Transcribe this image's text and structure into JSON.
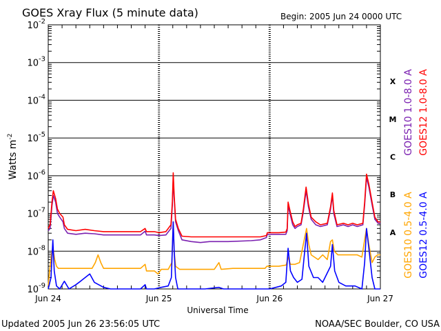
{
  "header": {
    "title": "GOES Xray Flux (5 minute data)",
    "begin": "Begin:  2005 Jun 24 0000 UTC"
  },
  "footer": {
    "updated": "Updated 2005 Jun 26 23:56:05 UTC",
    "credit": "NOAA/SEC Boulder, CO USA"
  },
  "chart_data": {
    "type": "line",
    "title": "GOES Xray Flux (5 minute data)",
    "xlabel": "Universal Time",
    "ylabel": "Watts m",
    "ylabel_sup": "-2",
    "y_scale": "log",
    "ylim": [
      1e-09,
      0.01
    ],
    "xlim_hours": [
      0,
      72
    ],
    "grid": true,
    "x_ticks": [
      {
        "h": 0,
        "label": "Jun 24"
      },
      {
        "h": 24,
        "label": "Jun 25"
      },
      {
        "h": 48,
        "label": "Jun 26"
      },
      {
        "h": 72,
        "label": "Jun 27"
      }
    ],
    "y_ticks": [
      {
        "exp": -9,
        "base": "10",
        "sup": "-9"
      },
      {
        "exp": -8,
        "base": "10",
        "sup": "-8"
      },
      {
        "exp": -7,
        "base": "10",
        "sup": "-7"
      },
      {
        "exp": -6,
        "base": "10",
        "sup": "-6"
      },
      {
        "exp": -5,
        "base": "10",
        "sup": "-5"
      },
      {
        "exp": -4,
        "base": "10",
        "sup": "-4"
      },
      {
        "exp": -3,
        "base": "10",
        "sup": "-3"
      },
      {
        "exp": -2,
        "base": "10",
        "sup": "-2"
      }
    ],
    "flare_classes": [
      {
        "label": "A",
        "exp": -7.5
      },
      {
        "label": "B",
        "exp": -6.5
      },
      {
        "label": "C",
        "exp": -5.5
      },
      {
        "label": "M",
        "exp": -4.5
      },
      {
        "label": "X",
        "exp": -3.5
      }
    ],
    "legend_top": [
      {
        "text": "GOES12 1.0-8.0 A",
        "color": "#ff0000"
      },
      {
        "text": "GOES10 1.0-8.0 A",
        "color": "#7a1fb0"
      }
    ],
    "legend_bottom": [
      {
        "text": "GOES12 0.5-4.0 A",
        "color": "#0000ff"
      },
      {
        "text": "GOES10 0.5-4.0 A",
        "color": "#ffa500"
      }
    ],
    "series": [
      {
        "name": "GOES12 1.0-8.0 A",
        "color": "#ff0000",
        "points": [
          [
            0,
            4e-08
          ],
          [
            0.4,
            5e-08
          ],
          [
            0.8,
            2e-07
          ],
          [
            1.1,
            4e-07
          ],
          [
            1.6,
            2.5e-07
          ],
          [
            2,
            1.3e-07
          ],
          [
            2.5,
            1e-07
          ],
          [
            3.2,
            8e-08
          ],
          [
            3.5,
            5e-08
          ],
          [
            4.2,
            3.8e-08
          ],
          [
            6,
            3.5e-08
          ],
          [
            8,
            3.8e-08
          ],
          [
            10,
            3.5e-08
          ],
          [
            12,
            3.3e-08
          ],
          [
            16,
            3.3e-08
          ],
          [
            20,
            3.3e-08
          ],
          [
            21,
            4e-08
          ],
          [
            21.3,
            3.3e-08
          ],
          [
            23,
            3.3e-08
          ],
          [
            24,
            3.1e-08
          ],
          [
            25.5,
            3.3e-08
          ],
          [
            26.6,
            5e-08
          ],
          [
            26.9,
            2e-07
          ],
          [
            27.1,
            1.2e-06
          ],
          [
            27.3,
            3e-07
          ],
          [
            27.6,
            7e-08
          ],
          [
            28.2,
            4e-08
          ],
          [
            29,
            2.5e-08
          ],
          [
            31,
            2.4e-08
          ],
          [
            33,
            2.4e-08
          ],
          [
            35,
            2.4e-08
          ],
          [
            39,
            2.4e-08
          ],
          [
            44,
            2.4e-08
          ],
          [
            46,
            2.4e-08
          ],
          [
            47.3,
            2.6e-08
          ],
          [
            47.5,
            3.1e-08
          ],
          [
            48,
            3.1e-08
          ],
          [
            50,
            3.1e-08
          ],
          [
            51.5,
            3.2e-08
          ],
          [
            51.8,
            4e-08
          ],
          [
            52,
            2e-07
          ],
          [
            52.4,
            1.2e-07
          ],
          [
            53,
            6e-08
          ],
          [
            53.5,
            4.5e-08
          ],
          [
            54,
            5e-08
          ],
          [
            54.8,
            5.5e-08
          ],
          [
            55.3,
            1.3e-07
          ],
          [
            55.9,
            5e-07
          ],
          [
            56.4,
            1.8e-07
          ],
          [
            57,
            8e-08
          ],
          [
            58,
            6e-08
          ],
          [
            59,
            5e-08
          ],
          [
            60.5,
            5.5e-08
          ],
          [
            61.2,
            1.5e-07
          ],
          [
            61.6,
            3.5e-07
          ],
          [
            61.9,
            1.2e-07
          ],
          [
            62.6,
            5e-08
          ],
          [
            64,
            5.5e-08
          ],
          [
            65,
            5e-08
          ],
          [
            66,
            5.5e-08
          ],
          [
            67,
            5e-08
          ],
          [
            68.2,
            5.5e-08
          ],
          [
            68.6,
            2e-07
          ],
          [
            69,
            1.1e-06
          ],
          [
            69.5,
            6e-07
          ],
          [
            70.2,
            2e-07
          ],
          [
            70.8,
            8e-08
          ],
          [
            71.5,
            6e-08
          ],
          [
            72,
            6e-08
          ]
        ]
      },
      {
        "name": "GOES10 1.0-8.0 A",
        "color": "#7a1fb0",
        "points": [
          [
            0,
            3.5e-08
          ],
          [
            0.4,
            4e-08
          ],
          [
            0.8,
            1.6e-07
          ],
          [
            1.1,
            3e-07
          ],
          [
            1.6,
            2e-07
          ],
          [
            2,
            1e-07
          ],
          [
            2.5,
            8e-08
          ],
          [
            3.2,
            6e-08
          ],
          [
            3.5,
            4e-08
          ],
          [
            4.2,
            3e-08
          ],
          [
            6,
            2.8e-08
          ],
          [
            8,
            3e-08
          ],
          [
            10,
            2.9e-08
          ],
          [
            12,
            2.7e-08
          ],
          [
            16,
            2.7e-08
          ],
          [
            20,
            2.7e-08
          ],
          [
            21,
            3.4e-08
          ],
          [
            21.3,
            2.7e-08
          ],
          [
            23,
            2.7e-08
          ],
          [
            24,
            2.6e-08
          ],
          [
            25.5,
            2.7e-08
          ],
          [
            26.6,
            4e-08
          ],
          [
            26.9,
            1.6e-07
          ],
          [
            27.1,
            8e-07
          ],
          [
            27.3,
            2.5e-07
          ],
          [
            27.6,
            6e-08
          ],
          [
            28.2,
            3.5e-08
          ],
          [
            29,
            2e-08
          ],
          [
            31,
            1.8e-08
          ],
          [
            33,
            1.7e-08
          ],
          [
            35,
            1.8e-08
          ],
          [
            39,
            1.8e-08
          ],
          [
            44,
            1.9e-08
          ],
          [
            46,
            2e-08
          ],
          [
            47.3,
            2.3e-08
          ],
          [
            47.5,
            2.8e-08
          ],
          [
            48,
            2.8e-08
          ],
          [
            50,
            2.8e-08
          ],
          [
            51.5,
            2.8e-08
          ],
          [
            51.8,
            3.5e-08
          ],
          [
            52,
            1.6e-07
          ],
          [
            52.4,
            1e-07
          ],
          [
            53,
            5e-08
          ],
          [
            53.5,
            4e-08
          ],
          [
            54,
            4.5e-08
          ],
          [
            54.8,
            5e-08
          ],
          [
            55.3,
            1.1e-07
          ],
          [
            55.9,
            4e-07
          ],
          [
            56.4,
            1.5e-07
          ],
          [
            57,
            7e-08
          ],
          [
            58,
            5e-08
          ],
          [
            59,
            4.5e-08
          ],
          [
            60.5,
            5e-08
          ],
          [
            61.2,
            1.3e-07
          ],
          [
            61.6,
            3e-07
          ],
          [
            61.9,
            1e-07
          ],
          [
            62.6,
            4.5e-08
          ],
          [
            64,
            5e-08
          ],
          [
            65,
            4.5e-08
          ],
          [
            66,
            5e-08
          ],
          [
            67,
            4.5e-08
          ],
          [
            68.2,
            5e-08
          ],
          [
            68.6,
            1.7e-07
          ],
          [
            69,
            9e-07
          ],
          [
            69.5,
            5e-07
          ],
          [
            70.2,
            1.7e-07
          ],
          [
            70.8,
            7e-08
          ],
          [
            71.5,
            5.5e-08
          ],
          [
            72,
            5.5e-08
          ]
        ]
      },
      {
        "name": "GOES10 0.5-4.0 A",
        "color": "#ffa500",
        "points": [
          [
            0,
            1.2e-09
          ],
          [
            0.3,
            3e-09
          ],
          [
            0.7,
            8e-09
          ],
          [
            1,
            1.3e-08
          ],
          [
            1.4,
            6e-09
          ],
          [
            1.8,
            4e-09
          ],
          [
            2.2,
            3.5e-09
          ],
          [
            3,
            3.5e-09
          ],
          [
            4,
            3.5e-09
          ],
          [
            5,
            3.5e-09
          ],
          [
            7,
            3.5e-09
          ],
          [
            9.5,
            3.5e-09
          ],
          [
            10.2,
            5e-09
          ],
          [
            10.8,
            8e-09
          ],
          [
            11.4,
            5e-09
          ],
          [
            12,
            3.5e-09
          ],
          [
            14,
            3.5e-09
          ],
          [
            17,
            3.5e-09
          ],
          [
            20,
            3.5e-09
          ],
          [
            21,
            4.5e-09
          ],
          [
            21.3,
            3e-09
          ],
          [
            23,
            3e-09
          ],
          [
            23.8,
            2.5e-09
          ],
          [
            24.5,
            3.3e-09
          ],
          [
            26,
            3.3e-09
          ],
          [
            26.8,
            5e-09
          ],
          [
            27.1,
            6e-08
          ],
          [
            27.3,
            1e-08
          ],
          [
            27.6,
            4e-09
          ],
          [
            28.5,
            3.3e-09
          ],
          [
            32,
            3.3e-09
          ],
          [
            36,
            3.3e-09
          ],
          [
            37,
            5e-09
          ],
          [
            37.5,
            3.3e-09
          ],
          [
            40,
            3.5e-09
          ],
          [
            42,
            3.5e-09
          ],
          [
            45,
            3.5e-09
          ],
          [
            47,
            3.5e-09
          ],
          [
            47.4,
            4e-09
          ],
          [
            48,
            4e-09
          ],
          [
            50,
            4e-09
          ],
          [
            51.6,
            4.3e-09
          ],
          [
            52,
            7e-09
          ],
          [
            52.5,
            4.5e-09
          ],
          [
            53.5,
            4.5e-09
          ],
          [
            54.5,
            5e-09
          ],
          [
            55.5,
            2e-08
          ],
          [
            56,
            4e-08
          ],
          [
            56.5,
            1.5e-08
          ],
          [
            57,
            8e-09
          ],
          [
            58.5,
            6e-09
          ],
          [
            59.5,
            8e-09
          ],
          [
            60.5,
            6e-09
          ],
          [
            61.2,
            1.8e-08
          ],
          [
            61.6,
            2e-08
          ],
          [
            62,
            1e-08
          ],
          [
            62.8,
            8e-09
          ],
          [
            64.5,
            8e-09
          ],
          [
            66,
            8e-09
          ],
          [
            67,
            8e-09
          ],
          [
            68,
            7e-09
          ],
          [
            68.6,
            2e-08
          ],
          [
            69,
            4e-08
          ],
          [
            69.5,
            1.5e-08
          ],
          [
            70.2,
            5e-09
          ],
          [
            70.8,
            7e-09
          ],
          [
            71.4,
            8e-09
          ],
          [
            72,
            8e-09
          ]
        ]
      },
      {
        "name": "GOES12 0.5-4.0 A",
        "color": "#0000ff",
        "points": [
          [
            0,
            8e-10
          ],
          [
            0.6,
            2e-09
          ],
          [
            1,
            2e-08
          ],
          [
            1.3,
            3e-09
          ],
          [
            1.8,
            1.2e-09
          ],
          [
            2.5,
            1e-09
          ],
          [
            3.5,
            1.6e-09
          ],
          [
            4.5,
            1e-09
          ],
          [
            6,
            1.3e-09
          ],
          [
            7,
            1.6e-09
          ],
          [
            8,
            2e-09
          ],
          [
            9,
            2.5e-09
          ],
          [
            10,
            1.5e-09
          ],
          [
            12,
            1.1e-09
          ],
          [
            13.5,
            9e-10
          ],
          [
            16,
            8e-10
          ],
          [
            20,
            8e-10
          ],
          [
            21,
            1.3e-09
          ],
          [
            21.3,
            8e-10
          ],
          [
            23,
            8e-10
          ],
          [
            24.5,
            1.1e-09
          ],
          [
            26,
            1.2e-09
          ],
          [
            26.7,
            2e-09
          ],
          [
            27.1,
            6e-08
          ],
          [
            27.3,
            1e-08
          ],
          [
            27.6,
            2e-09
          ],
          [
            28.1,
            8e-10
          ],
          [
            30,
            8e-10
          ],
          [
            34,
            8e-10
          ],
          [
            37,
            1.1e-09
          ],
          [
            38,
            8e-10
          ],
          [
            44,
            8e-10
          ],
          [
            47,
            8e-10
          ],
          [
            48,
            1e-09
          ],
          [
            50.5,
            1.2e-09
          ],
          [
            51.5,
            1.5e-09
          ],
          [
            52,
            1.2e-08
          ],
          [
            52.5,
            3e-09
          ],
          [
            53.2,
            2e-09
          ],
          [
            54,
            1.5e-09
          ],
          [
            55,
            1.8e-09
          ],
          [
            55.6,
            1e-08
          ],
          [
            56,
            3e-08
          ],
          [
            56.5,
            4e-09
          ],
          [
            57.5,
            2e-09
          ],
          [
            58.5,
            2e-09
          ],
          [
            59.5,
            1.5e-09
          ],
          [
            61.2,
            4e-09
          ],
          [
            61.6,
            1.5e-08
          ],
          [
            62.1,
            3e-09
          ],
          [
            63,
            1.5e-09
          ],
          [
            64.5,
            1.2e-09
          ],
          [
            65.5,
            1.2e-09
          ],
          [
            66.5,
            1.2e-09
          ],
          [
            68,
            1e-09
          ],
          [
            68.6,
            5e-09
          ],
          [
            69,
            4e-08
          ],
          [
            69.5,
            1.2e-08
          ],
          [
            70.2,
            2e-09
          ],
          [
            70.8,
            1e-09
          ],
          [
            72,
            1e-09
          ]
        ]
      }
    ]
  }
}
